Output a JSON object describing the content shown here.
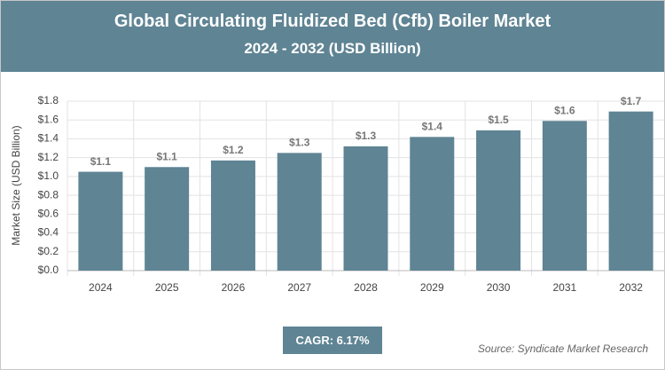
{
  "title": "Global Circulating Fluidized Bed (Cfb) Boiler Market",
  "subtitle": "2024 - 2032 (USD Billion)",
  "cagr": "CAGR: 6.17%",
  "source": "Source: Syndicate Market Research",
  "chart_data": {
    "type": "bar",
    "y_label": "Market Size (USD Billion)",
    "categories": [
      "2024",
      "2025",
      "2026",
      "2027",
      "2028",
      "2029",
      "2030",
      "2031",
      "2032"
    ],
    "values": [
      1.05,
      1.1,
      1.17,
      1.25,
      1.32,
      1.42,
      1.49,
      1.59,
      1.69
    ],
    "value_labels": [
      "$1.1",
      "$1.1",
      "$1.2",
      "$1.3",
      "$1.3",
      "$1.4",
      "$1.5",
      "$1.6",
      "$1.7"
    ],
    "color": "#5f8494",
    "ylim": [
      0,
      1.8
    ],
    "yticks": [
      {
        "value": 0,
        "label": "$0.0"
      },
      {
        "value": 0.2,
        "label": "$0.2"
      },
      {
        "value": 0.4,
        "label": "$0.4"
      },
      {
        "value": 0.6,
        "label": "$0.6"
      },
      {
        "value": 0.8,
        "label": "$0.8"
      },
      {
        "value": 1.0,
        "label": "$1.0"
      },
      {
        "value": 1.2,
        "label": "$1.2"
      },
      {
        "value": 1.4,
        "label": "$1.4"
      },
      {
        "value": 1.6,
        "label": "$1.6"
      },
      {
        "value": 1.8,
        "label": "$1.8"
      }
    ],
    "grid": true
  }
}
